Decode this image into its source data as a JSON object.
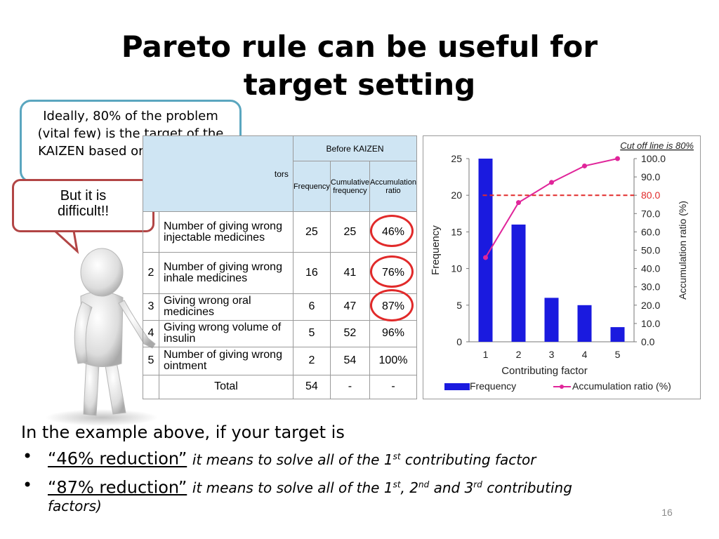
{
  "slide": {
    "title_line1": "Pareto rule can be useful for",
    "title_line2": "target setting",
    "page_number": "16"
  },
  "callouts": {
    "ideal_text": "Ideally, 80% of the problem (vital few) is the target of the KAIZEN based on Pareto rule.",
    "difficult_text": "But it is difficult!!"
  },
  "table": {
    "header_partial": "tors",
    "group_header": "Before KAIZEN",
    "col_frequency": "Frequency",
    "col_cumulative": "Cumulative frequency",
    "col_accum": "Accumulation ratio",
    "rows": [
      {
        "idx": "",
        "name": "Number of giving wrong injectable medicines",
        "freq": "25",
        "cum": "25",
        "ratio": "46%",
        "circled": true
      },
      {
        "idx": "2",
        "name": "Number of giving wrong inhale medicines",
        "freq": "16",
        "cum": "41",
        "ratio": "76%",
        "circled": true
      },
      {
        "idx": "3",
        "name": "Giving wrong oral medicines",
        "freq": "6",
        "cum": "47",
        "ratio": "87%",
        "circled": true
      },
      {
        "idx": "4",
        "name": "Giving wrong volume of insulin",
        "freq": "5",
        "cum": "52",
        "ratio": "96%",
        "circled": false
      },
      {
        "idx": "5",
        "name": "Number of giving wrong ointment",
        "freq": "2",
        "cum": "54",
        "ratio": "100%",
        "circled": false
      }
    ],
    "total_label": "Total",
    "total_freq": "54",
    "total_cum": "-",
    "total_ratio": "-"
  },
  "chart_data": {
    "type": "bar",
    "categories": [
      "1",
      "2",
      "3",
      "4",
      "5"
    ],
    "series": [
      {
        "name": "Frequency",
        "type": "bar",
        "values": [
          25,
          16,
          6,
          5,
          2
        ],
        "color": "#1a1adf"
      },
      {
        "name": "Accumulation ratio (%)",
        "type": "line",
        "values": [
          46,
          76,
          87,
          96,
          100
        ],
        "color": "#e0259a"
      }
    ],
    "xlabel": "Contributing factor",
    "ylabel": "Frequency",
    "ylabel_right": "Accumulation ratio (%)",
    "ylim": [
      0,
      25
    ],
    "ylim_right": [
      0,
      100
    ],
    "yticks": [
      "0",
      "5",
      "10",
      "15",
      "20",
      "25"
    ],
    "yticks_right": [
      "0.0",
      "10.0",
      "20.0",
      "30.0",
      "40.0",
      "50.0",
      "60.0",
      "70.0",
      "80.0",
      "90.0",
      "100.0"
    ],
    "cutoff_value": 80,
    "cutoff_label": "Cut off line is 80%",
    "cutoff_color": "#e12a2a",
    "legend_placement": "bottom"
  },
  "text": {
    "lead": "In the example above, if your target is",
    "bullets": [
      {
        "marker": "•",
        "highlight": "“46% reduction”",
        "desc_parts": [
          "it means to solve all of the 1",
          "st",
          " contributing factor"
        ]
      },
      {
        "marker": "•",
        "highlight": "“87% reduction”",
        "desc_parts": [
          "it means to solve all of the 1",
          "st",
          ", 2",
          "nd",
          " and 3",
          "rd",
          " contributing"
        ]
      }
    ],
    "continuation": "factors)"
  }
}
